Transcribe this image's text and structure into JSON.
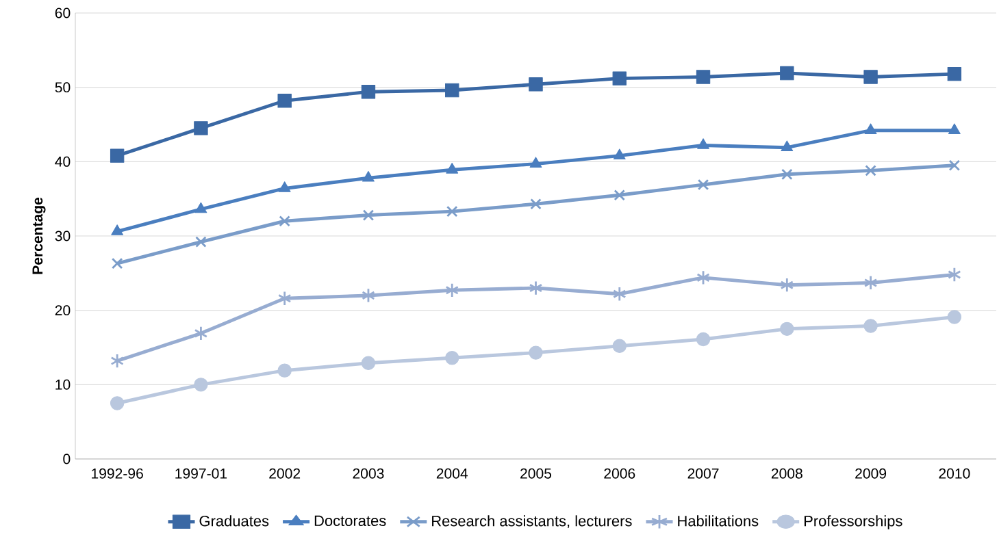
{
  "chart_data": {
    "type": "line",
    "ylabel": "Percentage",
    "categories": [
      "1992-96",
      "1997-01",
      "2002",
      "2003",
      "2004",
      "2005",
      "2006",
      "2007",
      "2008",
      "2009",
      "2010"
    ],
    "series": [
      {
        "name": "Graduates",
        "color": "#3a68a4",
        "marker": "square",
        "values": [
          40.8,
          44.5,
          48.2,
          49.4,
          49.6,
          50.4,
          51.2,
          51.4,
          51.9,
          51.4,
          51.8
        ]
      },
      {
        "name": "Doctorates",
        "color": "#4a7ebf",
        "marker": "triangle",
        "values": [
          30.6,
          33.6,
          36.4,
          37.8,
          38.9,
          39.7,
          40.8,
          42.2,
          41.9,
          44.2,
          44.2
        ]
      },
      {
        "name": "Research assistants, lecturers",
        "color": "#7a9cc9",
        "marker": "cross",
        "values": [
          26.3,
          29.2,
          32.0,
          32.8,
          33.3,
          34.3,
          35.5,
          36.9,
          38.3,
          38.8,
          39.5
        ]
      },
      {
        "name": "Habilitations",
        "color": "#97acd1",
        "marker": "cross",
        "values": [
          13.2,
          16.9,
          21.6,
          22.0,
          22.7,
          23.0,
          22.2,
          24.4,
          23.4,
          23.7,
          24.8
        ]
      },
      {
        "name": "Professorships",
        "color": "#b9c7de",
        "marker": "circle",
        "values": [
          7.5,
          10.0,
          11.9,
          12.9,
          13.6,
          14.3,
          15.2,
          16.1,
          17.5,
          17.9,
          19.1
        ]
      }
    ],
    "ylim": [
      0,
      60
    ],
    "yticks": [
      0,
      10,
      20,
      30,
      40,
      50,
      60
    ],
    "grid": "y",
    "legend": "bottom"
  }
}
